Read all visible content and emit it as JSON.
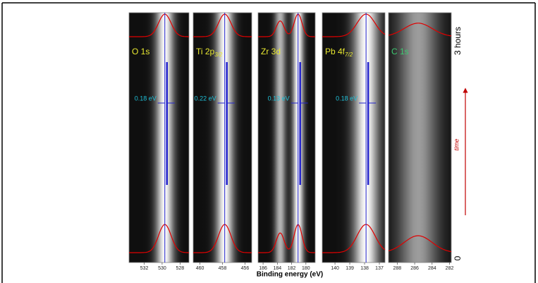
{
  "chart_data": [
    {
      "type": "spectral-map",
      "label": "O 1s",
      "label_color": "#e8e830",
      "xlim": [
        533.7,
        527.0
      ],
      "xticks": [
        532,
        530,
        528
      ],
      "peaks": [
        {
          "center": 529.7,
          "width": 0.7,
          "height": 1
        }
      ],
      "shift_label": "0.18 eV"
    },
    {
      "type": "spectral-map",
      "label": "Ti 2p",
      "label_sub": "3/2",
      "label_color": "#e8e830",
      "xlim": [
        460.6,
        455.4
      ],
      "xticks": [
        460,
        458,
        456
      ],
      "peaks": [
        {
          "center": 457.8,
          "width": 0.55,
          "height": 1
        }
      ],
      "shift_label": "0.22 eV"
    },
    {
      "type": "spectral-map",
      "label": "Zr 3d",
      "label_color": "#e8e830",
      "xlim": [
        186.7,
        178.7
      ],
      "xticks": [
        186,
        184,
        182,
        180
      ],
      "peaks": [
        {
          "center": 183.6,
          "width": 0.55,
          "height": 0.7
        },
        {
          "center": 181.1,
          "width": 0.55,
          "height": 1
        }
      ],
      "shift_label": "0.13 eV"
    },
    {
      "type": "spectral-map",
      "label": "Pb 4f",
      "label_sub": "7/2",
      "label_color": "#e8e830",
      "xlim": [
        140.86,
        136.62
      ],
      "xticks": [
        140,
        139,
        138,
        137
      ],
      "peaks": [
        {
          "center": 137.9,
          "width": 0.6,
          "height": 1
        }
      ],
      "shift_label": "0.18 eV"
    },
    {
      "type": "spectral-map",
      "label": "C 1s",
      "label_color": "#3cc870",
      "xlim": [
        289.0,
        281.8
      ],
      "xticks": [
        288,
        286,
        284,
        282
      ],
      "peaks": [
        {
          "center": 285.6,
          "width": 1.6,
          "height": 0.6
        }
      ],
      "xlabel": "Binding energy (eV)",
      "time_start": "0",
      "time_end": "3 hours",
      "time_label": "time"
    }
  ]
}
